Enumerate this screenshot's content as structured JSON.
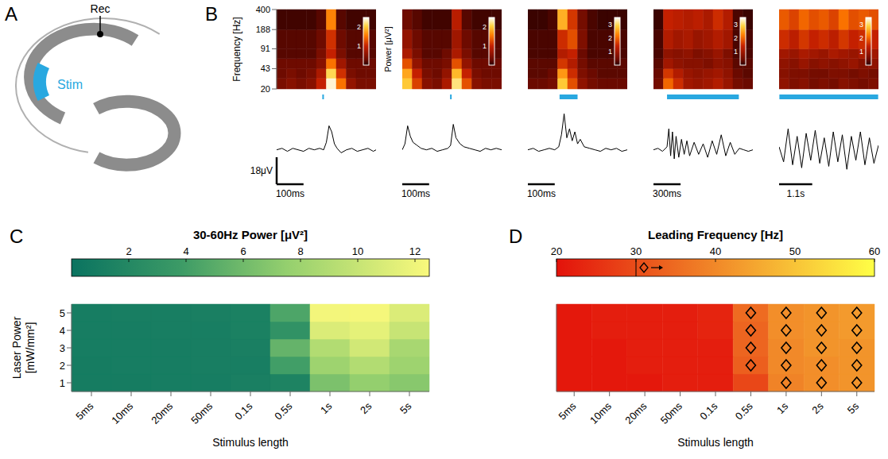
{
  "diagram": {
    "panel": "A",
    "labels": {
      "recording": "Rec",
      "stimulation": "Stim"
    }
  },
  "chart_data": [
    {
      "type": "spectrogram",
      "panel": "B",
      "ylabel": "Frequency [Hz]",
      "xlim": [
        0,
        370
      ],
      "ylim": [
        20,
        400
      ],
      "yticks": [
        20,
        43,
        91,
        188,
        400
      ],
      "log": "y",
      "tick_labels": "y",
      "x_bins": [
        0,
        37,
        74,
        111,
        148,
        185,
        222,
        259,
        296,
        333,
        370
      ],
      "y_bins": [
        20,
        30,
        43,
        63,
        91,
        188,
        400
      ],
      "cells": [
        [
          0.4,
          0.5,
          0.4,
          0.5,
          1.0,
          2.4,
          1.5,
          0.6,
          0.4,
          0.4
        ],
        [
          0.3,
          0.4,
          0.3,
          0.4,
          0.8,
          2.1,
          1.1,
          0.4,
          0.3,
          0.3
        ],
        [
          0.3,
          0.3,
          0.3,
          0.3,
          0.5,
          1.5,
          0.7,
          0.3,
          0.3,
          0.3
        ],
        [
          0.2,
          0.2,
          0.2,
          0.2,
          0.4,
          1.0,
          0.4,
          0.2,
          0.2,
          0.2
        ],
        [
          0.2,
          0.2,
          0.2,
          0.2,
          0.3,
          1.1,
          0.3,
          0.2,
          0.2,
          0.2
        ],
        [
          0.1,
          0.1,
          0.1,
          0.1,
          0.2,
          1.6,
          0.2,
          0.1,
          0.1,
          0.1
        ]
      ],
      "colorbar": {
        "label": "Power [μV²]",
        "range": [
          0,
          2.5
        ],
        "ticks": [
          1,
          2
        ]
      },
      "stimulus": {
        "range": [
          170,
          175
        ],
        "color": "#29a8e0"
      },
      "trace": {
        "type": "line",
        "color": "#000000",
        "ylim": [
          -15,
          30
        ],
        "x": [
          0,
          20,
          40,
          60,
          80,
          100,
          120,
          140,
          160,
          175,
          185,
          195,
          205,
          215,
          225,
          240,
          260,
          280,
          300,
          320,
          340,
          360,
          370
        ],
        "values": [
          0,
          1,
          -1,
          1,
          0,
          -1,
          1,
          0,
          1,
          0,
          5,
          16,
          12,
          4,
          1,
          -2,
          0,
          1,
          -1,
          0,
          1,
          -1,
          0
        ],
        "scale_bar": {
          "x": 100,
          "x_label": "100ms",
          "y": 18,
          "y_label": "18μV"
        }
      }
    },
    {
      "type": "spectrogram",
      "xlim": [
        0,
        370
      ],
      "ylim": [
        20,
        400
      ],
      "log": "y",
      "tick_labels": false,
      "x_bins": [
        0,
        37,
        74,
        111,
        148,
        185,
        222,
        259,
        296,
        333,
        370
      ],
      "y_bins": [
        20,
        30,
        43,
        63,
        91,
        188,
        400
      ],
      "cells": [
        [
          2.0,
          1.2,
          0.5,
          0.4,
          0.8,
          2.2,
          1.3,
          0.5,
          0.4,
          0.4
        ],
        [
          1.8,
          1.0,
          0.4,
          0.3,
          0.6,
          1.9,
          1.0,
          0.4,
          0.3,
          0.3
        ],
        [
          1.3,
          0.6,
          0.3,
          0.3,
          0.4,
          1.3,
          0.6,
          0.3,
          0.3,
          0.3
        ],
        [
          0.8,
          0.4,
          0.2,
          0.2,
          0.3,
          0.8,
          0.4,
          0.2,
          0.2,
          0.2
        ],
        [
          0.6,
          0.3,
          0.2,
          0.2,
          0.2,
          0.7,
          0.3,
          0.2,
          0.2,
          0.2
        ],
        [
          0.3,
          0.2,
          0.1,
          0.1,
          0.1,
          0.9,
          0.2,
          0.1,
          0.1,
          0.1
        ]
      ],
      "colorbar": {
        "range": [
          0,
          2.5
        ],
        "ticks": [
          1,
          2
        ]
      },
      "stimulus": {
        "range": [
          178,
          183
        ],
        "color": "#29a8e0"
      },
      "trace": {
        "type": "line",
        "color": "#000000",
        "ylim": [
          -15,
          30
        ],
        "x": [
          0,
          10,
          20,
          30,
          40,
          55,
          70,
          90,
          110,
          130,
          150,
          170,
          180,
          190,
          200,
          215,
          230,
          250,
          270,
          290,
          310,
          330,
          350,
          370
        ],
        "values": [
          0,
          4,
          16,
          9,
          5,
          3,
          1,
          0,
          1,
          -1,
          0,
          1,
          3,
          17,
          8,
          4,
          2,
          1,
          0,
          -1,
          1,
          0,
          1,
          0
        ],
        "scale_bar": {
          "x": 100,
          "x_label": "100ms"
        }
      }
    },
    {
      "type": "spectrogram",
      "xlim": [
        0,
        370
      ],
      "ylim": [
        20,
        400
      ],
      "log": "y",
      "tick_labels": false,
      "x_bins": [
        0,
        37,
        74,
        111,
        148,
        185,
        222,
        259,
        296,
        333,
        370
      ],
      "y_bins": [
        20,
        30,
        43,
        63,
        91,
        188,
        400
      ],
      "cells": [
        [
          0.4,
          0.4,
          0.5,
          2.8,
          1.8,
          0.8,
          0.5,
          0.4,
          0.4,
          0.4
        ],
        [
          0.3,
          0.3,
          0.4,
          2.4,
          1.5,
          0.6,
          0.4,
          0.3,
          0.3,
          0.3
        ],
        [
          0.3,
          0.3,
          0.3,
          1.6,
          1.2,
          0.5,
          0.3,
          0.3,
          0.3,
          0.3
        ],
        [
          0.2,
          0.2,
          0.2,
          1.2,
          1.4,
          0.4,
          0.2,
          0.2,
          0.2,
          0.2
        ],
        [
          0.2,
          0.2,
          0.2,
          1.5,
          1.8,
          0.6,
          0.2,
          0.2,
          0.2,
          0.2
        ],
        [
          0.1,
          0.1,
          0.2,
          2.6,
          1.6,
          0.5,
          0.2,
          0.1,
          0.1,
          0.1
        ]
      ],
      "colorbar": {
        "range": [
          0,
          3.5
        ],
        "ticks": [
          1,
          2,
          3
        ]
      },
      "stimulus": {
        "range": [
          118,
          185
        ],
        "color": "#29a8e0"
      },
      "trace": {
        "type": "line",
        "color": "#000000",
        "ylim": [
          -15,
          30
        ],
        "x": [
          0,
          20,
          40,
          60,
          80,
          100,
          115,
          125,
          135,
          145,
          155,
          165,
          175,
          185,
          195,
          210,
          230,
          250,
          270,
          290,
          310,
          330,
          350,
          370
        ],
        "values": [
          0,
          1,
          -1,
          0,
          1,
          0,
          2,
          10,
          24,
          8,
          14,
          6,
          12,
          4,
          7,
          2,
          1,
          0,
          -1,
          1,
          0,
          1,
          -1,
          0
        ],
        "scale_bar": {
          "x": 100,
          "x_label": "100ms"
        }
      }
    },
    {
      "type": "spectrogram",
      "xlim": [
        0,
        1100
      ],
      "ylim": [
        20,
        400
      ],
      "log": "y",
      "tick_labels": false,
      "x_bins": [
        0,
        110,
        220,
        330,
        440,
        550,
        660,
        770,
        880,
        990,
        1100
      ],
      "y_bins": [
        20,
        30,
        43,
        63,
        91,
        188,
        400
      ],
      "cells": [
        [
          0.5,
          2.0,
          1.5,
          1.0,
          0.9,
          1.0,
          1.2,
          0.9,
          0.5,
          0.4
        ],
        [
          0.4,
          1.6,
          1.2,
          0.9,
          0.8,
          0.9,
          1.0,
          0.8,
          0.4,
          0.3
        ],
        [
          0.3,
          1.0,
          0.8,
          0.7,
          0.7,
          0.6,
          0.8,
          0.7,
          0.3,
          0.3
        ],
        [
          0.2,
          0.8,
          0.7,
          0.8,
          0.6,
          0.7,
          0.9,
          0.6,
          0.2,
          0.2
        ],
        [
          0.2,
          1.2,
          1.0,
          1.1,
          0.9,
          1.0,
          1.2,
          1.0,
          0.2,
          0.2
        ],
        [
          0.1,
          1.4,
          1.3,
          1.2,
          1.3,
          1.1,
          1.5,
          1.2,
          0.2,
          0.1
        ]
      ],
      "colorbar": {
        "range": [
          0,
          3.5
        ],
        "ticks": [
          1,
          2,
          3
        ]
      },
      "stimulus": {
        "range": [
          150,
          945
        ],
        "color": "#29a8e0"
      },
      "trace": {
        "type": "line",
        "color": "#000000",
        "ylim": [
          -15,
          30
        ],
        "x": [
          0,
          50,
          100,
          150,
          170,
          190,
          210,
          230,
          250,
          280,
          310,
          340,
          370,
          400,
          450,
          500,
          550,
          600,
          650,
          700,
          750,
          800,
          850,
          900,
          950,
          1000,
          1050,
          1100
        ],
        "values": [
          0,
          1,
          -1,
          2,
          14,
          -4,
          12,
          -6,
          9,
          -5,
          7,
          -3,
          6,
          -4,
          5,
          -3,
          4,
          -5,
          6,
          -3,
          10,
          -4,
          5,
          -3,
          1,
          0,
          -1,
          0
        ],
        "scale_bar": {
          "x": 300,
          "x_label": "300ms"
        }
      }
    },
    {
      "type": "spectrogram",
      "xlim": [
        0,
        3300
      ],
      "ylim": [
        20,
        400
      ],
      "log": "y",
      "tick_labels": false,
      "x_bins": [
        0,
        330,
        660,
        990,
        1320,
        1650,
        1980,
        2310,
        2640,
        2970,
        3300
      ],
      "y_bins": [
        20,
        30,
        43,
        63,
        91,
        188,
        400
      ],
      "cells": [
        [
          0.8,
          0.6,
          0.7,
          0.5,
          0.6,
          0.5,
          0.7,
          0.6,
          0.5,
          0.6
        ],
        [
          0.7,
          0.6,
          0.6,
          0.5,
          0.5,
          0.6,
          0.6,
          0.5,
          0.6,
          0.5
        ],
        [
          0.8,
          0.7,
          0.9,
          0.7,
          0.8,
          0.7,
          0.8,
          0.9,
          0.7,
          0.8
        ],
        [
          1.0,
          0.9,
          1.1,
          1.0,
          0.9,
          1.1,
          1.0,
          0.9,
          1.1,
          1.0
        ],
        [
          1.5,
          1.3,
          1.6,
          1.4,
          1.5,
          1.3,
          1.6,
          1.4,
          1.5,
          1.4
        ],
        [
          1.9,
          1.7,
          2.0,
          1.8,
          1.9,
          1.7,
          2.1,
          1.8,
          1.9,
          1.8
        ]
      ],
      "colorbar": {
        "range": [
          0,
          3.5
        ],
        "ticks": [
          1,
          2,
          3
        ]
      },
      "stimulus": {
        "range": [
          10,
          3290
        ],
        "color": "#29a8e0"
      },
      "trace": {
        "type": "line",
        "color": "#000000",
        "ylim": [
          -15,
          30
        ],
        "x": [
          0,
          150,
          300,
          450,
          600,
          750,
          900,
          1050,
          1200,
          1350,
          1500,
          1650,
          1800,
          1950,
          2100,
          2250,
          2400,
          2550,
          2700,
          2850,
          3000,
          3150,
          3300
        ],
        "values": [
          2,
          -8,
          14,
          -10,
          9,
          -12,
          11,
          -7,
          13,
          -9,
          8,
          -11,
          12,
          -8,
          10,
          -13,
          9,
          -7,
          12,
          -10,
          8,
          -9,
          3
        ],
        "scale_bar": {
          "x": 1100,
          "x_label": "1.1s"
        }
      }
    },
    {
      "type": "heatmap",
      "panel": "C",
      "title": "30-60Hz Power [μV²]",
      "xlabel": "Stimulus length",
      "ylabel": "Laser Power [mW/mm²]",
      "categories": [
        "5ms",
        "10ms",
        "20ms",
        "50ms",
        "0.1s",
        "0.5s",
        "1s",
        "2s",
        "5s"
      ],
      "y_categories": [
        1,
        2,
        3,
        4,
        5
      ],
      "cells": [
        [
          0.9,
          0.9,
          1.0,
          1.0,
          1.2,
          1.5,
          6.5,
          7.5,
          7.0
        ],
        [
          0.9,
          1.0,
          1.0,
          1.1,
          1.1,
          4.0,
          8.0,
          9.0,
          8.0
        ],
        [
          1.0,
          1.0,
          1.0,
          1.1,
          1.2,
          5.5,
          9.0,
          10.5,
          8.5
        ],
        [
          1.0,
          1.0,
          1.1,
          1.1,
          1.3,
          3.0,
          11.0,
          11.5,
          10.0
        ],
        [
          1.0,
          1.1,
          1.1,
          1.2,
          1.3,
          4.5,
          12.2,
          12.3,
          11.0
        ]
      ],
      "colorbar": {
        "range": [
          0,
          12.5
        ],
        "ticks": [
          2,
          4,
          6,
          8,
          10,
          12
        ]
      }
    },
    {
      "type": "heatmap",
      "panel": "D",
      "title": "Leading Frequency [Hz]",
      "xlabel": "Stimulus length",
      "tick_labels": "x",
      "categories": [
        "5ms",
        "10ms",
        "20ms",
        "50ms",
        "0.1s",
        "0.5s",
        "1s",
        "2s",
        "5s"
      ],
      "cells": [
        [
          21,
          21,
          21,
          22,
          22,
          29,
          39,
          41,
          42
        ],
        [
          21,
          21,
          22,
          22,
          22,
          33,
          40,
          41,
          42
        ],
        [
          21,
          21,
          22,
          22,
          22,
          34,
          40,
          42,
          42
        ],
        [
          21,
          22,
          22,
          22,
          23,
          34,
          41,
          42,
          43
        ],
        [
          21,
          22,
          22,
          22,
          23,
          35,
          41,
          42,
          43
        ]
      ],
      "colorbar": {
        "range": [
          20,
          60
        ],
        "ticks": [
          20,
          30,
          40,
          50,
          60
        ]
      },
      "threshold": 30,
      "marker": "diamond"
    }
  ]
}
